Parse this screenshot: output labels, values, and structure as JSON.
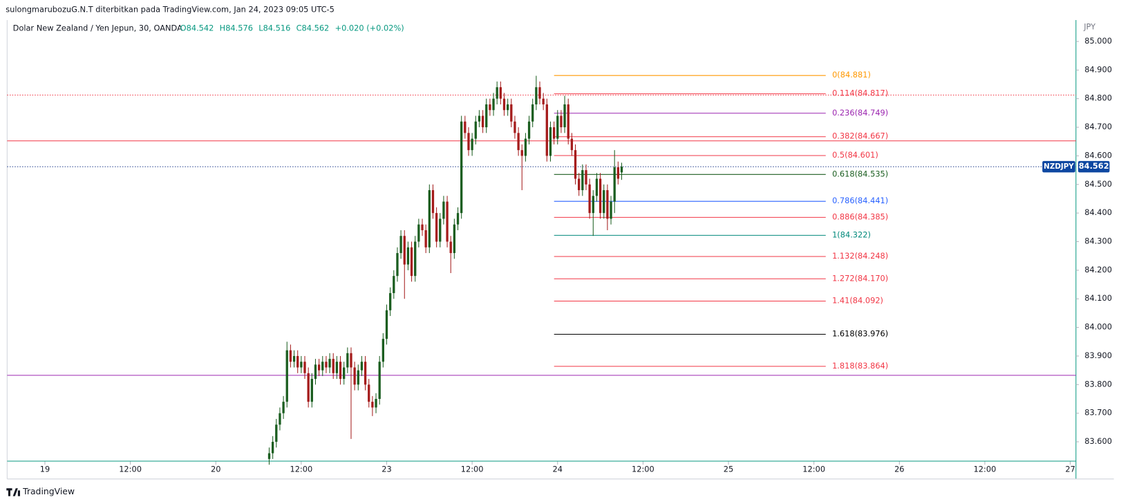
{
  "header": {
    "publisher": "sulongmarubozuG.N.T diterbitkan pada TradingView.com, Jan 24, 2023 09:05 UTC-5"
  },
  "footer": {
    "brand": "TradingView"
  },
  "chart_data": {
    "type": "candlestick",
    "title": "Dolar New Zealand / Yen Jepun, 30, OANDA",
    "ohlc_labels": [
      "O84.542",
      "H84.576",
      "L84.516",
      "C84.562",
      "+0.020 (+0.02%)"
    ],
    "currency": "JPY",
    "up_color": "#1b5e20",
    "down_color": "#a51c1c",
    "xlim": [
      -10.6,
      289.6
    ],
    "xticks": [
      {
        "value": 0,
        "label": "19"
      },
      {
        "value": 24,
        "label": "12:00"
      },
      {
        "value": 48,
        "label": "20"
      },
      {
        "value": 72,
        "label": "12:00"
      },
      {
        "value": 96,
        "label": "23"
      },
      {
        "value": 120,
        "label": "12:00"
      },
      {
        "value": 144,
        "label": "24"
      },
      {
        "value": 168,
        "label": "12:00"
      },
      {
        "value": 192,
        "label": "25"
      },
      {
        "value": 216,
        "label": "12:00"
      },
      {
        "value": 240,
        "label": "26"
      },
      {
        "value": 264,
        "label": "12:00"
      },
      {
        "value": 288,
        "label": "27"
      }
    ],
    "ylim": [
      83.5325,
      85.075
    ],
    "yticks": [
      {
        "value": 83.6,
        "label": "83.600"
      },
      {
        "value": 83.7,
        "label": "83.700"
      },
      {
        "value": 83.8,
        "label": "83.800"
      },
      {
        "value": 83.9,
        "label": "83.900"
      },
      {
        "value": 84.0,
        "label": "84.000"
      },
      {
        "value": 84.1,
        "label": "84.100"
      },
      {
        "value": 84.2,
        "label": "84.200"
      },
      {
        "value": 84.3,
        "label": "84.300"
      },
      {
        "value": 84.4,
        "label": "84.400"
      },
      {
        "value": 84.5,
        "label": "84.500"
      },
      {
        "value": 84.6,
        "label": "84.600"
      },
      {
        "value": 84.7,
        "label": "84.700"
      },
      {
        "value": 84.8,
        "label": "84.800"
      },
      {
        "value": 84.9,
        "label": "84.900"
      },
      {
        "value": 85.0,
        "label": "85.000"
      }
    ],
    "x": [
      63,
      64,
      65,
      66,
      67,
      68,
      69,
      70,
      71,
      72,
      73,
      74,
      75,
      76,
      77,
      78,
      79,
      80,
      81,
      82,
      83,
      84,
      85,
      86,
      87,
      88,
      89,
      90,
      91,
      92,
      93,
      94,
      95,
      96,
      97,
      98,
      99,
      100,
      101,
      102,
      103,
      104,
      105,
      106,
      107,
      108,
      109,
      110,
      111,
      112,
      113,
      114,
      115,
      116,
      117,
      118,
      119,
      120,
      121,
      122,
      123,
      124,
      125,
      126,
      127,
      128,
      129,
      130,
      131,
      132,
      133,
      134,
      135,
      136,
      137,
      138,
      139,
      140,
      141,
      142,
      143,
      144,
      145,
      146,
      147,
      148,
      149,
      150,
      151,
      152,
      153,
      154,
      155,
      156,
      157,
      158,
      159,
      160,
      161,
      162
    ],
    "open": [
      83.54,
      83.56,
      83.6,
      83.66,
      83.7,
      83.74,
      83.92,
      83.88,
      83.9,
      83.86,
      83.88,
      83.84,
      83.74,
      83.82,
      83.87,
      83.85,
      83.88,
      83.86,
      83.89,
      83.84,
      83.88,
      83.82,
      83.86,
      83.91,
      83.86,
      83.8,
      83.85,
      83.88,
      83.8,
      83.74,
      83.72,
      83.75,
      83.88,
      83.96,
      84.06,
      84.12,
      84.18,
      84.26,
      84.32,
      84.22,
      84.28,
      84.18,
      84.3,
      84.36,
      84.34,
      84.28,
      84.48,
      84.4,
      84.3,
      84.38,
      84.44,
      84.3,
      84.26,
      84.36,
      84.4,
      84.72,
      84.68,
      84.62,
      84.66,
      84.72,
      84.74,
      84.7,
      84.78,
      84.76,
      84.8,
      84.84,
      84.8,
      84.76,
      84.78,
      84.72,
      84.68,
      84.62,
      84.6,
      84.66,
      84.72,
      84.78,
      84.84,
      84.8,
      84.78,
      84.6,
      84.7,
      84.66,
      84.74,
      84.7,
      84.78,
      84.66,
      84.62,
      84.52,
      84.48,
      84.55,
      84.5,
      84.4,
      84.46,
      84.52,
      84.4,
      84.48,
      84.38,
      84.44,
      84.56,
      84.542
    ],
    "high": [
      83.58,
      83.62,
      83.68,
      83.72,
      83.76,
      83.95,
      83.94,
      83.92,
      83.92,
      83.9,
      83.9,
      83.86,
      83.84,
      83.89,
      83.89,
      83.9,
      83.9,
      83.91,
      83.91,
      83.9,
      83.9,
      83.88,
      83.93,
      83.93,
      83.88,
      83.87,
      83.9,
      83.9,
      83.82,
      83.76,
      83.77,
      83.9,
      83.98,
      84.08,
      84.14,
      84.2,
      84.28,
      84.34,
      84.34,
      84.3,
      84.3,
      84.32,
      84.38,
      84.38,
      84.36,
      84.5,
      84.5,
      84.42,
      84.4,
      84.46,
      84.46,
      84.32,
      84.38,
      84.42,
      84.74,
      84.74,
      84.7,
      84.68,
      84.74,
      84.76,
      84.76,
      84.8,
      84.8,
      84.82,
      84.86,
      84.86,
      84.82,
      84.8,
      84.8,
      84.74,
      84.7,
      84.64,
      84.68,
      84.74,
      84.8,
      84.88,
      84.86,
      84.82,
      84.8,
      84.72,
      84.72,
      84.76,
      84.76,
      84.81,
      84.8,
      84.68,
      84.64,
      84.54,
      84.57,
      84.57,
      84.52,
      84.48,
      84.54,
      84.54,
      84.5,
      84.5,
      84.46,
      84.62,
      84.58,
      84.576
    ],
    "low": [
      83.52,
      83.54,
      83.58,
      83.64,
      83.68,
      83.72,
      83.86,
      83.86,
      83.84,
      83.84,
      83.82,
      83.72,
      83.72,
      83.8,
      83.83,
      83.83,
      83.84,
      83.84,
      83.82,
      83.82,
      83.8,
      83.8,
      83.84,
      83.61,
      83.78,
      83.78,
      83.83,
      83.78,
      83.72,
      83.69,
      83.7,
      83.73,
      83.86,
      83.94,
      84.04,
      84.1,
      84.16,
      84.24,
      84.1,
      84.2,
      84.16,
      84.16,
      84.28,
      84.32,
      84.26,
      84.26,
      84.38,
      84.28,
      84.28,
      84.36,
      84.28,
      84.19,
      84.24,
      84.34,
      84.38,
      84.66,
      84.6,
      84.6,
      84.64,
      84.7,
      84.68,
      84.68,
      84.74,
      84.74,
      84.78,
      84.78,
      84.74,
      84.74,
      84.7,
      84.66,
      84.6,
      84.48,
      84.58,
      84.64,
      84.7,
      84.76,
      84.78,
      84.76,
      84.58,
      84.58,
      84.64,
      84.64,
      84.68,
      84.68,
      84.64,
      84.6,
      84.5,
      84.46,
      84.46,
      84.48,
      84.38,
      84.32,
      84.44,
      84.38,
      84.38,
      84.34,
      84.36,
      84.4,
      84.5,
      84.516
    ],
    "close": [
      83.56,
      83.6,
      83.66,
      83.7,
      83.74,
      83.92,
      83.88,
      83.9,
      83.86,
      83.88,
      83.84,
      83.74,
      83.82,
      83.87,
      83.85,
      83.88,
      83.86,
      83.89,
      83.84,
      83.88,
      83.82,
      83.86,
      83.91,
      83.86,
      83.8,
      83.85,
      83.88,
      83.8,
      83.74,
      83.72,
      83.75,
      83.88,
      83.96,
      84.06,
      84.12,
      84.18,
      84.26,
      84.32,
      84.22,
      84.28,
      84.18,
      84.3,
      84.36,
      84.34,
      84.28,
      84.48,
      84.4,
      84.3,
      84.38,
      84.44,
      84.3,
      84.26,
      84.36,
      84.4,
      84.72,
      84.68,
      84.62,
      84.66,
      84.72,
      84.74,
      84.7,
      84.78,
      84.76,
      84.8,
      84.84,
      84.8,
      84.76,
      84.78,
      84.72,
      84.68,
      84.62,
      84.6,
      84.66,
      84.72,
      84.78,
      84.84,
      84.8,
      84.78,
      84.6,
      84.7,
      84.66,
      84.74,
      84.7,
      84.78,
      84.66,
      84.62,
      84.52,
      84.48,
      84.55,
      84.5,
      84.4,
      84.46,
      84.52,
      84.4,
      84.48,
      84.38,
      84.44,
      84.56,
      84.52,
      84.562
    ],
    "hlines": [
      {
        "value": 84.6525,
        "color": "#f23645",
        "style": "solid"
      },
      {
        "value": 84.8125,
        "color": "#f23645",
        "style": "dotted"
      },
      {
        "value": 83.8325,
        "color": "#9c27b0",
        "style": "solid"
      },
      {
        "value": 84.562,
        "color": "#1e3a8a",
        "style": "dotted"
      },
      {
        "value": 83.5325,
        "color": "#089981",
        "style": "solid"
      }
    ],
    "fib_levels": [
      {
        "label": "0(84.881)",
        "value": 84.881,
        "color": "#ff9800"
      },
      {
        "label": "0.114(84.817)",
        "value": 84.817,
        "color": "#f23645"
      },
      {
        "label": "0.236(84.749)",
        "value": 84.749,
        "color": "#9c27b0"
      },
      {
        "label": "0.382(84.667)",
        "value": 84.667,
        "color": "#f23645"
      },
      {
        "label": "0.5(84.601)",
        "value": 84.601,
        "color": "#f23645"
      },
      {
        "label": "0.618(84.535)",
        "value": 84.535,
        "color": "#1b5e20"
      },
      {
        "label": "0.786(84.441)",
        "value": 84.441,
        "color": "#2962ff"
      },
      {
        "label": "0.886(84.385)",
        "value": 84.385,
        "color": "#f23645"
      },
      {
        "label": "1(84.322)",
        "value": 84.322,
        "color": "#00897b"
      },
      {
        "label": "1.132(84.248)",
        "value": 84.248,
        "color": "#f23645"
      },
      {
        "label": "1.272(84.170)",
        "value": 84.17,
        "color": "#f23645"
      },
      {
        "label": "1.41(84.092)",
        "value": 84.092,
        "color": "#f23645"
      },
      {
        "label": "1.618(83.976)",
        "value": 83.976,
        "color": "#000000"
      },
      {
        "label": "1.818(83.864)",
        "value": 83.864,
        "color": "#f23645"
      }
    ],
    "last_price": {
      "symbol": "NZDJPY",
      "value": 84.562,
      "label": "84.562",
      "color": "#0d47a1"
    }
  }
}
